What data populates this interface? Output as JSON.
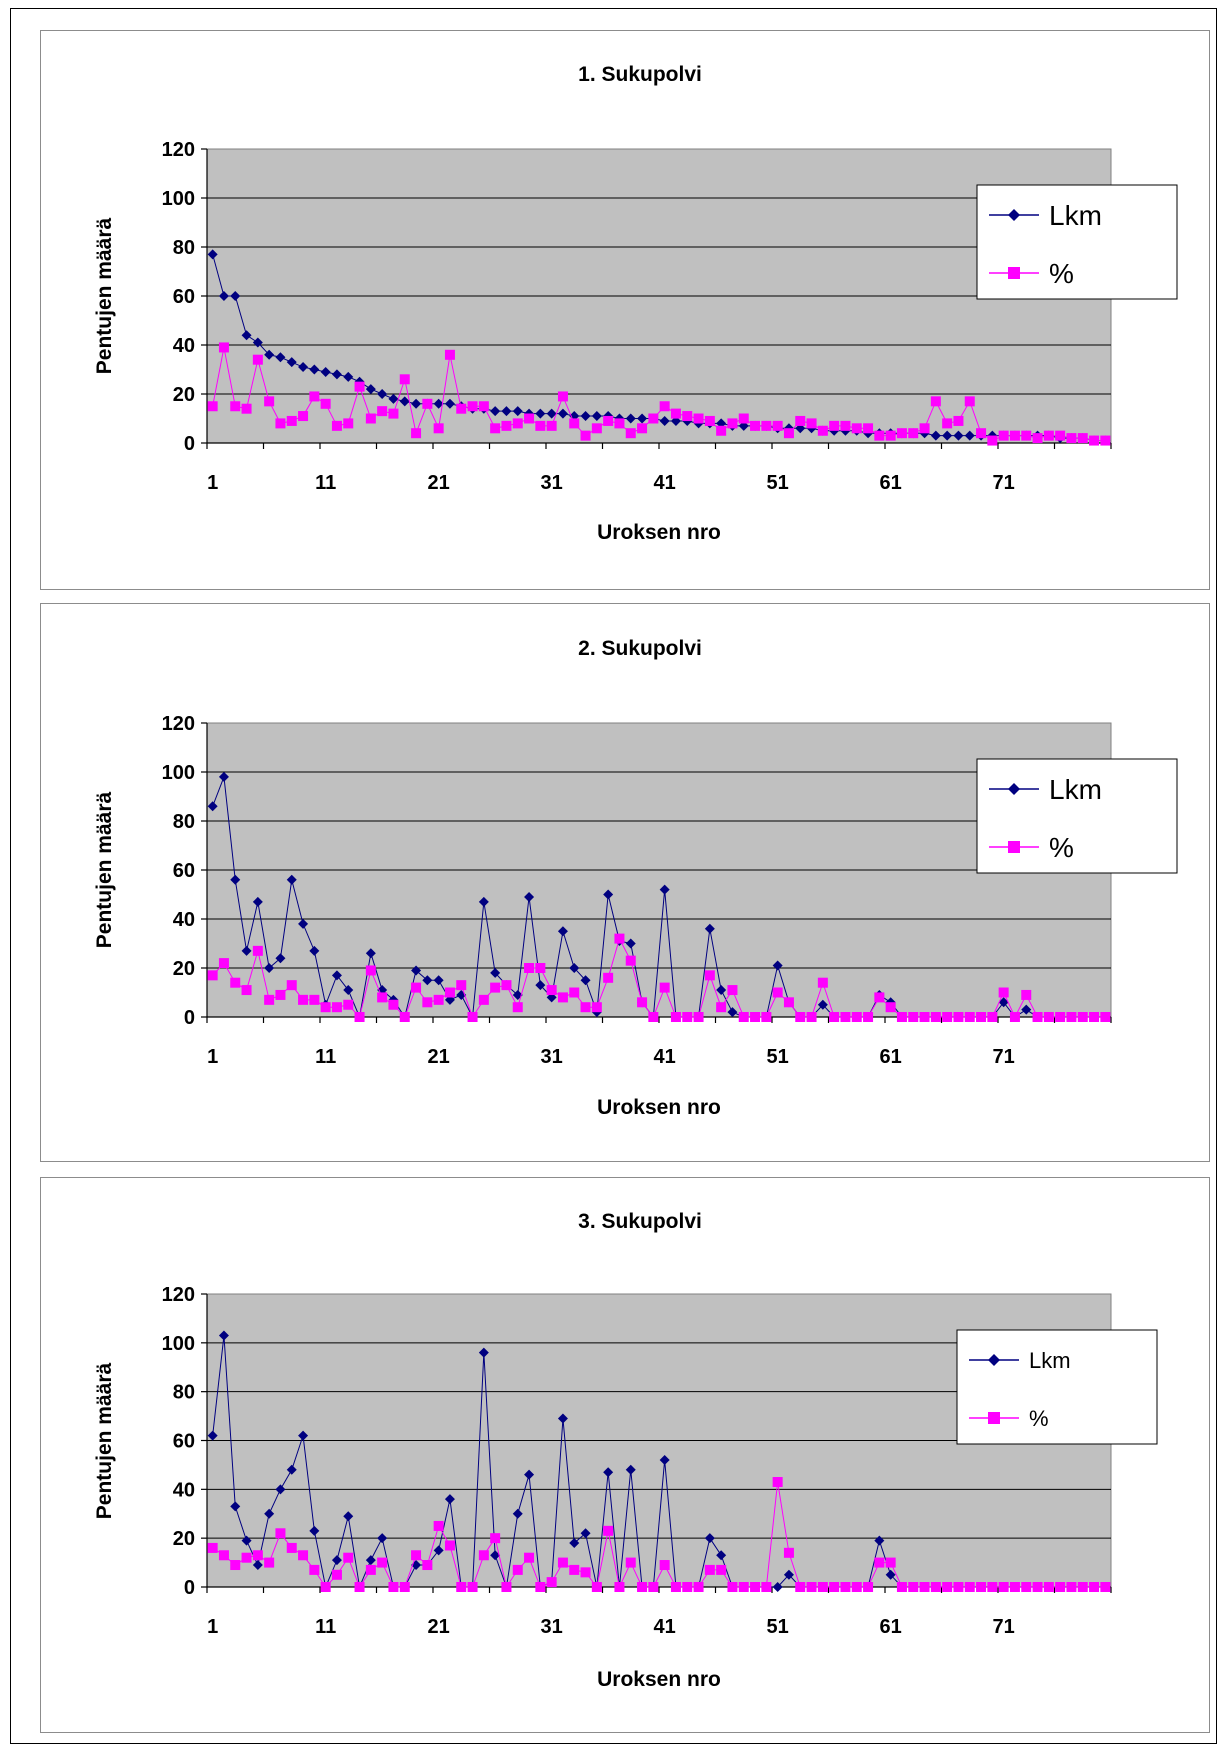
{
  "chart_data": [
    {
      "type": "line",
      "title": "1. Sukupolvi",
      "xlabel": "Uroksen nro",
      "ylabel": "Pentujen määrä",
      "x": [
        1,
        2,
        3,
        4,
        5,
        6,
        7,
        8,
        9,
        10,
        11,
        12,
        13,
        14,
        15,
        16,
        17,
        18,
        19,
        20,
        21,
        22,
        23,
        24,
        25,
        26,
        27,
        28,
        29,
        30,
        31,
        32,
        33,
        34,
        35,
        36,
        37,
        38,
        39,
        40,
        41,
        42,
        43,
        44,
        45,
        46,
        47,
        48,
        49,
        50,
        51,
        52,
        53,
        54,
        55,
        56,
        57,
        58,
        59,
        60,
        61,
        62,
        63,
        64,
        65,
        66,
        67,
        68,
        69,
        70,
        71,
        72,
        73,
        74,
        75,
        76,
        77,
        78,
        79,
        80
      ],
      "xticks": [
        1,
        11,
        21,
        31,
        41,
        51,
        61,
        71
      ],
      "yticks": [
        0,
        20,
        40,
        60,
        80,
        100,
        120
      ],
      "ylim": [
        0,
        120
      ],
      "grid": true,
      "legend_position": "top-right",
      "legend_font": "large",
      "series": [
        {
          "name": "Lkm",
          "color": "#000080",
          "marker": "diamond",
          "values": [
            77,
            60,
            60,
            44,
            41,
            36,
            35,
            33,
            31,
            30,
            29,
            28,
            27,
            25,
            22,
            20,
            18,
            17,
            16,
            16,
            16,
            16,
            15,
            14,
            14,
            13,
            13,
            13,
            12,
            12,
            12,
            12,
            11,
            11,
            11,
            11,
            10,
            10,
            10,
            10,
            9,
            9,
            9,
            8,
            8,
            8,
            7,
            7,
            7,
            7,
            6,
            6,
            6,
            6,
            5,
            5,
            5,
            5,
            4,
            4,
            4,
            4,
            4,
            4,
            3,
            3,
            3,
            3,
            3,
            3,
            3,
            3,
            3,
            3,
            3,
            2,
            2,
            2,
            1,
            1
          ]
        },
        {
          "name": "%",
          "color": "#ff00ff",
          "marker": "square",
          "values": [
            15,
            39,
            15,
            14,
            34,
            17,
            8,
            9,
            11,
            19,
            16,
            7,
            8,
            23,
            10,
            13,
            12,
            26,
            4,
            16,
            6,
            36,
            14,
            15,
            15,
            6,
            7,
            8,
            10,
            7,
            7,
            19,
            8,
            3,
            6,
            9,
            8,
            4,
            6,
            10,
            15,
            12,
            11,
            10,
            9,
            5,
            8,
            10,
            7,
            7,
            7,
            4,
            9,
            8,
            5,
            7,
            7,
            6,
            6,
            3,
            3,
            4,
            4,
            6,
            17,
            8,
            9,
            17,
            4,
            1,
            3,
            3,
            3,
            2,
            3,
            3,
            2,
            2,
            1,
            1
          ]
        }
      ]
    },
    {
      "type": "line",
      "title": "2. Sukupolvi",
      "xlabel": "Uroksen nro",
      "ylabel": "Pentujen määrä",
      "x": [
        1,
        2,
        3,
        4,
        5,
        6,
        7,
        8,
        9,
        10,
        11,
        12,
        13,
        14,
        15,
        16,
        17,
        18,
        19,
        20,
        21,
        22,
        23,
        24,
        25,
        26,
        27,
        28,
        29,
        30,
        31,
        32,
        33,
        34,
        35,
        36,
        37,
        38,
        39,
        40,
        41,
        42,
        43,
        44,
        45,
        46,
        47,
        48,
        49,
        50,
        51,
        52,
        53,
        54,
        55,
        56,
        57,
        58,
        59,
        60,
        61,
        62,
        63,
        64,
        65,
        66,
        67,
        68,
        69,
        70,
        71,
        72,
        73,
        74,
        75,
        76,
        77,
        78,
        79,
        80
      ],
      "xticks": [
        1,
        11,
        21,
        31,
        41,
        51,
        61,
        71
      ],
      "yticks": [
        0,
        20,
        40,
        60,
        80,
        100,
        120
      ],
      "ylim": [
        0,
        120
      ],
      "grid": true,
      "legend_position": "top-right",
      "legend_font": "large",
      "series": [
        {
          "name": "Lkm",
          "color": "#000080",
          "marker": "diamond",
          "values": [
            86,
            98,
            56,
            27,
            47,
            20,
            24,
            56,
            38,
            27,
            5,
            17,
            11,
            0,
            26,
            11,
            7,
            0,
            19,
            15,
            15,
            7,
            9,
            0,
            47,
            18,
            13,
            9,
            49,
            13,
            8,
            35,
            20,
            15,
            2,
            50,
            31,
            30,
            6,
            0,
            52,
            0,
            0,
            0,
            36,
            11,
            2,
            0,
            0,
            0,
            21,
            6,
            0,
            0,
            5,
            0,
            0,
            0,
            0,
            9,
            6,
            0,
            0,
            0,
            0,
            0,
            0,
            0,
            0,
            0,
            6,
            0,
            3,
            0,
            0,
            0,
            0,
            0,
            0,
            0
          ]
        },
        {
          "name": "%",
          "color": "#ff00ff",
          "marker": "square",
          "values": [
            17,
            22,
            14,
            11,
            27,
            7,
            9,
            13,
            7,
            7,
            4,
            4,
            5,
            0,
            19,
            8,
            5,
            0,
            12,
            6,
            7,
            10,
            13,
            0,
            7,
            12,
            13,
            4,
            20,
            20,
            11,
            8,
            10,
            4,
            4,
            16,
            32,
            23,
            6,
            0,
            12,
            0,
            0,
            0,
            17,
            4,
            11,
            0,
            0,
            0,
            10,
            6,
            0,
            0,
            14,
            0,
            0,
            0,
            0,
            8,
            4,
            0,
            0,
            0,
            0,
            0,
            0,
            0,
            0,
            0,
            10,
            0,
            9,
            0,
            0,
            0,
            0,
            0,
            0,
            0
          ]
        }
      ]
    },
    {
      "type": "line",
      "title": "3. Sukupolvi",
      "xlabel": "Uroksen nro",
      "ylabel": "Pentujen määrä",
      "x": [
        1,
        2,
        3,
        4,
        5,
        6,
        7,
        8,
        9,
        10,
        11,
        12,
        13,
        14,
        15,
        16,
        17,
        18,
        19,
        20,
        21,
        22,
        23,
        24,
        25,
        26,
        27,
        28,
        29,
        30,
        31,
        32,
        33,
        34,
        35,
        36,
        37,
        38,
        39,
        40,
        41,
        42,
        43,
        44,
        45,
        46,
        47,
        48,
        49,
        50,
        51,
        52,
        53,
        54,
        55,
        56,
        57,
        58,
        59,
        60,
        61,
        62,
        63,
        64,
        65,
        66,
        67,
        68,
        69,
        70,
        71,
        72,
        73,
        74,
        75,
        76,
        77,
        78,
        79,
        80
      ],
      "xticks": [
        1,
        11,
        21,
        31,
        41,
        51,
        61,
        71
      ],
      "yticks": [
        0,
        20,
        40,
        60,
        80,
        100,
        120
      ],
      "ylim": [
        0,
        120
      ],
      "grid": true,
      "legend_position": "top-right",
      "legend_font": "normal",
      "series": [
        {
          "name": "Lkm",
          "color": "#000080",
          "marker": "diamond",
          "values": [
            62,
            103,
            33,
            19,
            9,
            30,
            40,
            48,
            62,
            23,
            0,
            11,
            29,
            0,
            11,
            20,
            0,
            0,
            9,
            9,
            15,
            36,
            0,
            0,
            96,
            13,
            0,
            30,
            46,
            0,
            2,
            69,
            18,
            22,
            0,
            47,
            0,
            48,
            0,
            0,
            52,
            0,
            0,
            0,
            20,
            13,
            0,
            0,
            0,
            0,
            0,
            5,
            0,
            0,
            0,
            0,
            0,
            0,
            0,
            19,
            5,
            0,
            0,
            0,
            0,
            0,
            0,
            0,
            0,
            0,
            0,
            0,
            0,
            0,
            0,
            0,
            0,
            0,
            0,
            0
          ]
        },
        {
          "name": "%",
          "color": "#ff00ff",
          "marker": "square",
          "values": [
            16,
            13,
            9,
            12,
            13,
            10,
            22,
            16,
            13,
            7,
            0,
            5,
            12,
            0,
            7,
            10,
            0,
            0,
            13,
            9,
            25,
            17,
            0,
            0,
            13,
            20,
            0,
            7,
            12,
            0,
            2,
            10,
            7,
            6,
            0,
            23,
            0,
            10,
            0,
            0,
            9,
            0,
            0,
            0,
            7,
            7,
            0,
            0,
            0,
            0,
            43,
            14,
            0,
            0,
            0,
            0,
            0,
            0,
            0,
            10,
            10,
            0,
            0,
            0,
            0,
            0,
            0,
            0,
            0,
            0,
            0,
            0,
            0,
            0,
            0,
            0,
            0,
            0,
            0,
            0
          ]
        }
      ]
    }
  ]
}
